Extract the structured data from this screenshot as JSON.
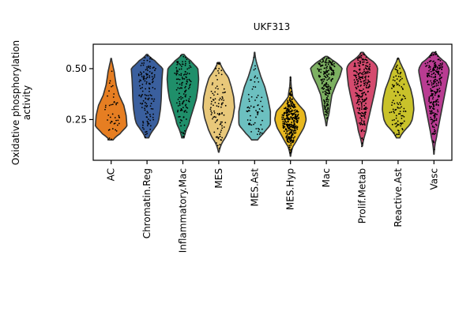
{
  "chart_data": {
    "type": "violin",
    "title": "UKF313",
    "xlabel": "",
    "ylabel_lines": [
      "Oxidative phosphorylation",
      "activity"
    ],
    "ylim": [
      0.05,
      0.62
    ],
    "yticks": [
      0.25,
      0.5
    ],
    "ytick_labels": [
      "0.25",
      "0.50"
    ],
    "grid": false,
    "legend": "none",
    "points_overlay": "jittered black dots per cell",
    "categories": [
      {
        "name": "AC",
        "color": "#e67e22",
        "min": 0.15,
        "max": 0.55,
        "n_points": 45,
        "profile": [
          [
            0.15,
            0.35
          ],
          [
            0.18,
            0.85
          ],
          [
            0.22,
            1.0
          ],
          [
            0.27,
            0.95
          ],
          [
            0.32,
            0.8
          ],
          [
            0.37,
            0.5
          ],
          [
            0.42,
            0.32
          ],
          [
            0.47,
            0.22
          ],
          [
            0.52,
            0.15
          ],
          [
            0.55,
            0.05
          ]
        ]
      },
      {
        "name": "Chromatin.Reg",
        "color": "#3a5f9e",
        "min": 0.16,
        "max": 0.57,
        "n_points": 140,
        "profile": [
          [
            0.16,
            0.3
          ],
          [
            0.2,
            0.55
          ],
          [
            0.25,
            0.75
          ],
          [
            0.3,
            0.85
          ],
          [
            0.35,
            0.9
          ],
          [
            0.4,
            0.92
          ],
          [
            0.45,
            0.95
          ],
          [
            0.5,
            1.0
          ],
          [
            0.54,
            0.75
          ],
          [
            0.57,
            0.1
          ]
        ]
      },
      {
        "name": "Inflammatory.Mac",
        "color": "#1f8f6a",
        "min": 0.16,
        "max": 0.57,
        "n_points": 140,
        "profile": [
          [
            0.16,
            0.2
          ],
          [
            0.2,
            0.3
          ],
          [
            0.25,
            0.45
          ],
          [
            0.3,
            0.65
          ],
          [
            0.35,
            0.85
          ],
          [
            0.4,
            0.95
          ],
          [
            0.45,
            1.0
          ],
          [
            0.5,
            0.95
          ],
          [
            0.54,
            0.75
          ],
          [
            0.57,
            0.2
          ]
        ]
      },
      {
        "name": "MES",
        "color": "#e8c87a",
        "min": 0.09,
        "max": 0.53,
        "n_points": 100,
        "profile": [
          [
            0.09,
            0.05
          ],
          [
            0.14,
            0.3
          ],
          [
            0.2,
            0.65
          ],
          [
            0.26,
            0.9
          ],
          [
            0.31,
            1.0
          ],
          [
            0.36,
            0.95
          ],
          [
            0.41,
            0.8
          ],
          [
            0.46,
            0.6
          ],
          [
            0.5,
            0.4
          ],
          [
            0.53,
            0.2
          ]
        ]
      },
      {
        "name": "MES.Ast",
        "color": "#6cc0c0",
        "min": 0.15,
        "max": 0.58,
        "n_points": 70,
        "profile": [
          [
            0.15,
            0.55
          ],
          [
            0.18,
            0.85
          ],
          [
            0.23,
            1.0
          ],
          [
            0.29,
            1.0
          ],
          [
            0.35,
            0.85
          ],
          [
            0.41,
            0.65
          ],
          [
            0.46,
            0.4
          ],
          [
            0.51,
            0.2
          ],
          [
            0.55,
            0.1
          ],
          [
            0.58,
            0.04
          ]
        ]
      },
      {
        "name": "MES.Hyp",
        "color": "#e8b81e",
        "min": 0.07,
        "max": 0.46,
        "n_points": 360,
        "profile": [
          [
            0.07,
            0.03
          ],
          [
            0.12,
            0.2
          ],
          [
            0.17,
            0.55
          ],
          [
            0.21,
            0.85
          ],
          [
            0.25,
            1.0
          ],
          [
            0.29,
            0.9
          ],
          [
            0.32,
            0.55
          ],
          [
            0.36,
            0.15
          ],
          [
            0.41,
            0.06
          ],
          [
            0.46,
            0.03
          ]
        ]
      },
      {
        "name": "Mac",
        "color": "#7db162",
        "min": 0.22,
        "max": 0.56,
        "n_points": 210,
        "profile": [
          [
            0.22,
            0.05
          ],
          [
            0.27,
            0.15
          ],
          [
            0.32,
            0.25
          ],
          [
            0.37,
            0.35
          ],
          [
            0.42,
            0.6
          ],
          [
            0.46,
            0.85
          ],
          [
            0.5,
            1.0
          ],
          [
            0.53,
            0.9
          ],
          [
            0.55,
            0.55
          ],
          [
            0.56,
            0.2
          ]
        ]
      },
      {
        "name": "Prolif.Metab",
        "color": "#d44a6e",
        "min": 0.12,
        "max": 0.58,
        "n_points": 240,
        "profile": [
          [
            0.12,
            0.05
          ],
          [
            0.17,
            0.2
          ],
          [
            0.22,
            0.3
          ],
          [
            0.27,
            0.45
          ],
          [
            0.32,
            0.6
          ],
          [
            0.37,
            0.75
          ],
          [
            0.42,
            0.88
          ],
          [
            0.47,
            0.95
          ],
          [
            0.53,
            1.0
          ],
          [
            0.58,
            0.2
          ]
        ]
      },
      {
        "name": "Reactive.Ast",
        "color": "#c9c22a",
        "min": 0.16,
        "max": 0.55,
        "n_points": 110,
        "profile": [
          [
            0.16,
            0.3
          ],
          [
            0.2,
            0.6
          ],
          [
            0.25,
            0.9
          ],
          [
            0.3,
            1.0
          ],
          [
            0.35,
            0.95
          ],
          [
            0.4,
            0.8
          ],
          [
            0.45,
            0.55
          ],
          [
            0.49,
            0.4
          ],
          [
            0.52,
            0.3
          ],
          [
            0.55,
            0.12
          ]
        ]
      },
      {
        "name": "Vasc",
        "color": "#b93c92",
        "min": 0.08,
        "max": 0.58,
        "n_points": 260,
        "profile": [
          [
            0.08,
            0.03
          ],
          [
            0.13,
            0.1
          ],
          [
            0.18,
            0.2
          ],
          [
            0.24,
            0.35
          ],
          [
            0.3,
            0.5
          ],
          [
            0.36,
            0.65
          ],
          [
            0.42,
            0.8
          ],
          [
            0.48,
            0.95
          ],
          [
            0.53,
            1.0
          ],
          [
            0.58,
            0.3
          ]
        ]
      }
    ]
  }
}
